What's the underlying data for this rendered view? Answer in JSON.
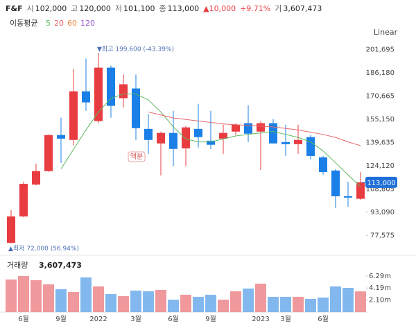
{
  "header": {
    "name": "F&F",
    "items": [
      {
        "label": "시",
        "value": "102,000"
      },
      {
        "label": "고",
        "value": "120,000"
      },
      {
        "label": "저",
        "value": "101,100"
      },
      {
        "label": "종",
        "value": "113,000"
      }
    ],
    "change": "▲10,000",
    "change_pct": "+9.71%",
    "volume_label": "거",
    "volume": "3,607,473"
  },
  "scale_button": "Linear",
  "chart_data": [
    {
      "type": "candlestick",
      "categories": [
        null,
        "6월",
        null,
        null,
        "9월",
        null,
        null,
        "2022",
        null,
        null,
        "3월",
        null,
        null,
        "6월",
        null,
        null,
        "9월",
        null,
        null,
        null,
        "2023",
        null,
        "3월",
        null,
        null,
        "6월",
        null,
        null,
        null
      ],
      "open": [
        72600,
        90200,
        111500,
        120500,
        144600,
        141300,
        173800,
        153900,
        189600,
        169200,
        175700,
        148700,
        139000,
        146000,
        135700,
        148700,
        140800,
        142200,
        146900,
        152500,
        146900,
        152500,
        139900,
        138500,
        143200,
        129700,
        120900,
        103700,
        102000
      ],
      "high": [
        94400,
        113500,
        125500,
        145000,
        156200,
        188700,
        195700,
        199600,
        191000,
        185000,
        185000,
        158500,
        146900,
        160800,
        150600,
        165500,
        160800,
        151500,
        152500,
        164500,
        153900,
        155200,
        151500,
        151500,
        144600,
        130600,
        121800,
        113400,
        120000
      ],
      "low": [
        72000,
        89700,
        111000,
        120000,
        126000,
        137600,
        160800,
        152500,
        156200,
        163100,
        141300,
        132000,
        117600,
        123700,
        123700,
        136200,
        135300,
        132000,
        144600,
        139900,
        121300,
        139000,
        130600,
        132000,
        128300,
        118100,
        95800,
        96700,
        101100
      ],
      "close": [
        90200,
        112000,
        120500,
        144600,
        142200,
        173800,
        166400,
        189600,
        164100,
        178500,
        149200,
        141300,
        146000,
        135300,
        149700,
        143200,
        138100,
        146000,
        151500,
        145500,
        152500,
        139000,
        138500,
        141300,
        130600,
        119900,
        103700,
        102800,
        113000
      ],
      "up_color": "#e83c41",
      "down_color": "#1a7fe6",
      "ylim": [
        68000,
        207000
      ],
      "yticks": [
        {
          "value": 77575,
          "label": "77,575"
        },
        {
          "value": 93090,
          "label": "93,090"
        },
        {
          "value": 108605,
          "label": "108,605"
        },
        {
          "value": 124120,
          "label": "124,120"
        },
        {
          "value": 139635,
          "label": "139,635"
        },
        {
          "value": 155150,
          "label": "155,150"
        },
        {
          "value": 170665,
          "label": "170,665"
        },
        {
          "value": 186180,
          "label": "186,180"
        },
        {
          "value": 201695,
          "label": "201,695"
        }
      ],
      "moving_average": {
        "title": "이동평균",
        "series": [
          {
            "name": "5",
            "color": "#5cb85c",
            "values": [
              null,
              null,
              null,
              null,
              122000,
              135000,
              148000,
              160000,
              169000,
              172000,
              172000,
              168000,
              160000,
              150000,
              142000,
              140000,
              140000,
              142000,
              144000,
              145000,
              146000,
              147000,
              145000,
              143000,
              140000,
              134000,
              126000,
              118000,
              110000
            ]
          },
          {
            "name": "20",
            "color": "#e8676b",
            "values": [
              null,
              null,
              null,
              null,
              null,
              null,
              null,
              null,
              null,
              null,
              null,
              160000,
              158000,
              156000,
              155000,
              154000,
              153000,
              152000,
              151500,
              151000,
              150500,
              150000,
              149000,
              148000,
              146500,
              145000,
              143000,
              140000,
              137500
            ]
          },
          {
            "name": "60",
            "color": "#f0883e"
          },
          {
            "name": "120",
            "color": "#9b59d0"
          }
        ]
      },
      "high_annotation": "▼최고 199,600 (-43.39%)",
      "low_annotation": "▲최저 72,000 (56.94%)",
      "event_annotation": "액분",
      "last_price": {
        "value": 113000,
        "label": "113,000"
      }
    },
    {
      "type": "bar",
      "title": "거래량",
      "total": "3,607,473",
      "values": [
        5670000,
        6280000,
        5550000,
        4830000,
        3980000,
        3500000,
        6030000,
        4470000,
        3140000,
        2780000,
        3740000,
        3620000,
        3860000,
        2170000,
        3020000,
        2660000,
        3020000,
        2170000,
        3620000,
        4100000,
        4950000,
        2660000,
        2660000,
        2660000,
        2290000,
        2530000,
        4470000,
        4220000,
        3607473
      ],
      "up_color": "#f0999d",
      "down_color": "#82b8ee",
      "ylim": [
        0,
        9400000
      ],
      "yticks": [
        {
          "value": 2100000,
          "label": "2.10m"
        },
        {
          "value": 4190000,
          "label": "4.19m"
        },
        {
          "value": 6290000,
          "label": "6.29m"
        }
      ]
    }
  ]
}
